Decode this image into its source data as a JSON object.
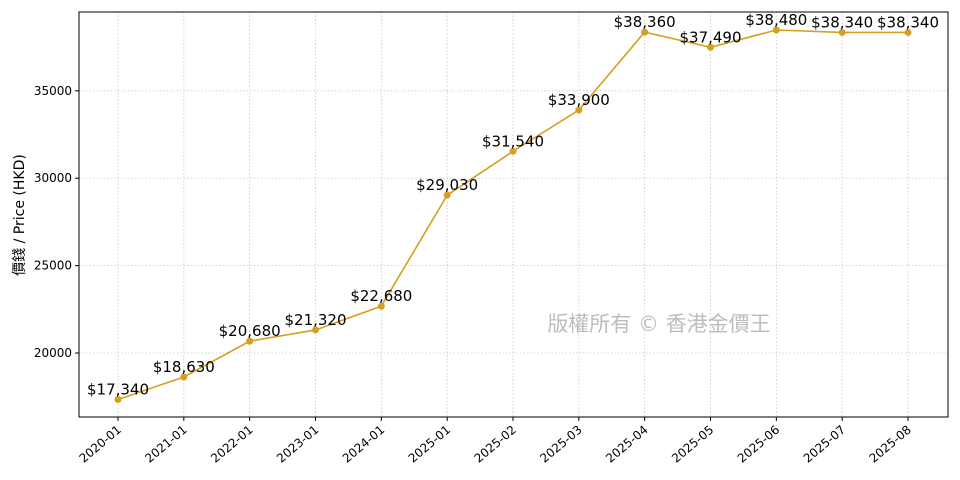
{
  "chart_data": {
    "type": "line",
    "title": "",
    "xlabel": "",
    "ylabel": "價錢 / Price (HKD)",
    "categories": [
      "2020-01",
      "2021-01",
      "2022-01",
      "2023-01",
      "2024-01",
      "2025-01",
      "2025-02",
      "2025-03",
      "2025-04",
      "2025-05",
      "2025-06",
      "2025-07",
      "2025-08"
    ],
    "series": [
      {
        "name": "Price",
        "values": [
          17340,
          18630,
          20680,
          21320,
          22680,
          29030,
          31540,
          33900,
          38360,
          37490,
          38480,
          38340,
          38340
        ],
        "labels": [
          "$17,340",
          "$18,630",
          "$20,680",
          "$21,320",
          "$22,680",
          "$29,030",
          "$31,540",
          "$33,900",
          "$38,360",
          "$37,490",
          "$38,480",
          "$38,340",
          "$38,340"
        ],
        "color": "#d4a020"
      }
    ],
    "yticks": [
      20000,
      25000,
      30000,
      35000
    ],
    "ylim": [
      16340,
      39510
    ],
    "grid": true,
    "legend": null,
    "watermark": "版權所有 © 香港金價王"
  }
}
